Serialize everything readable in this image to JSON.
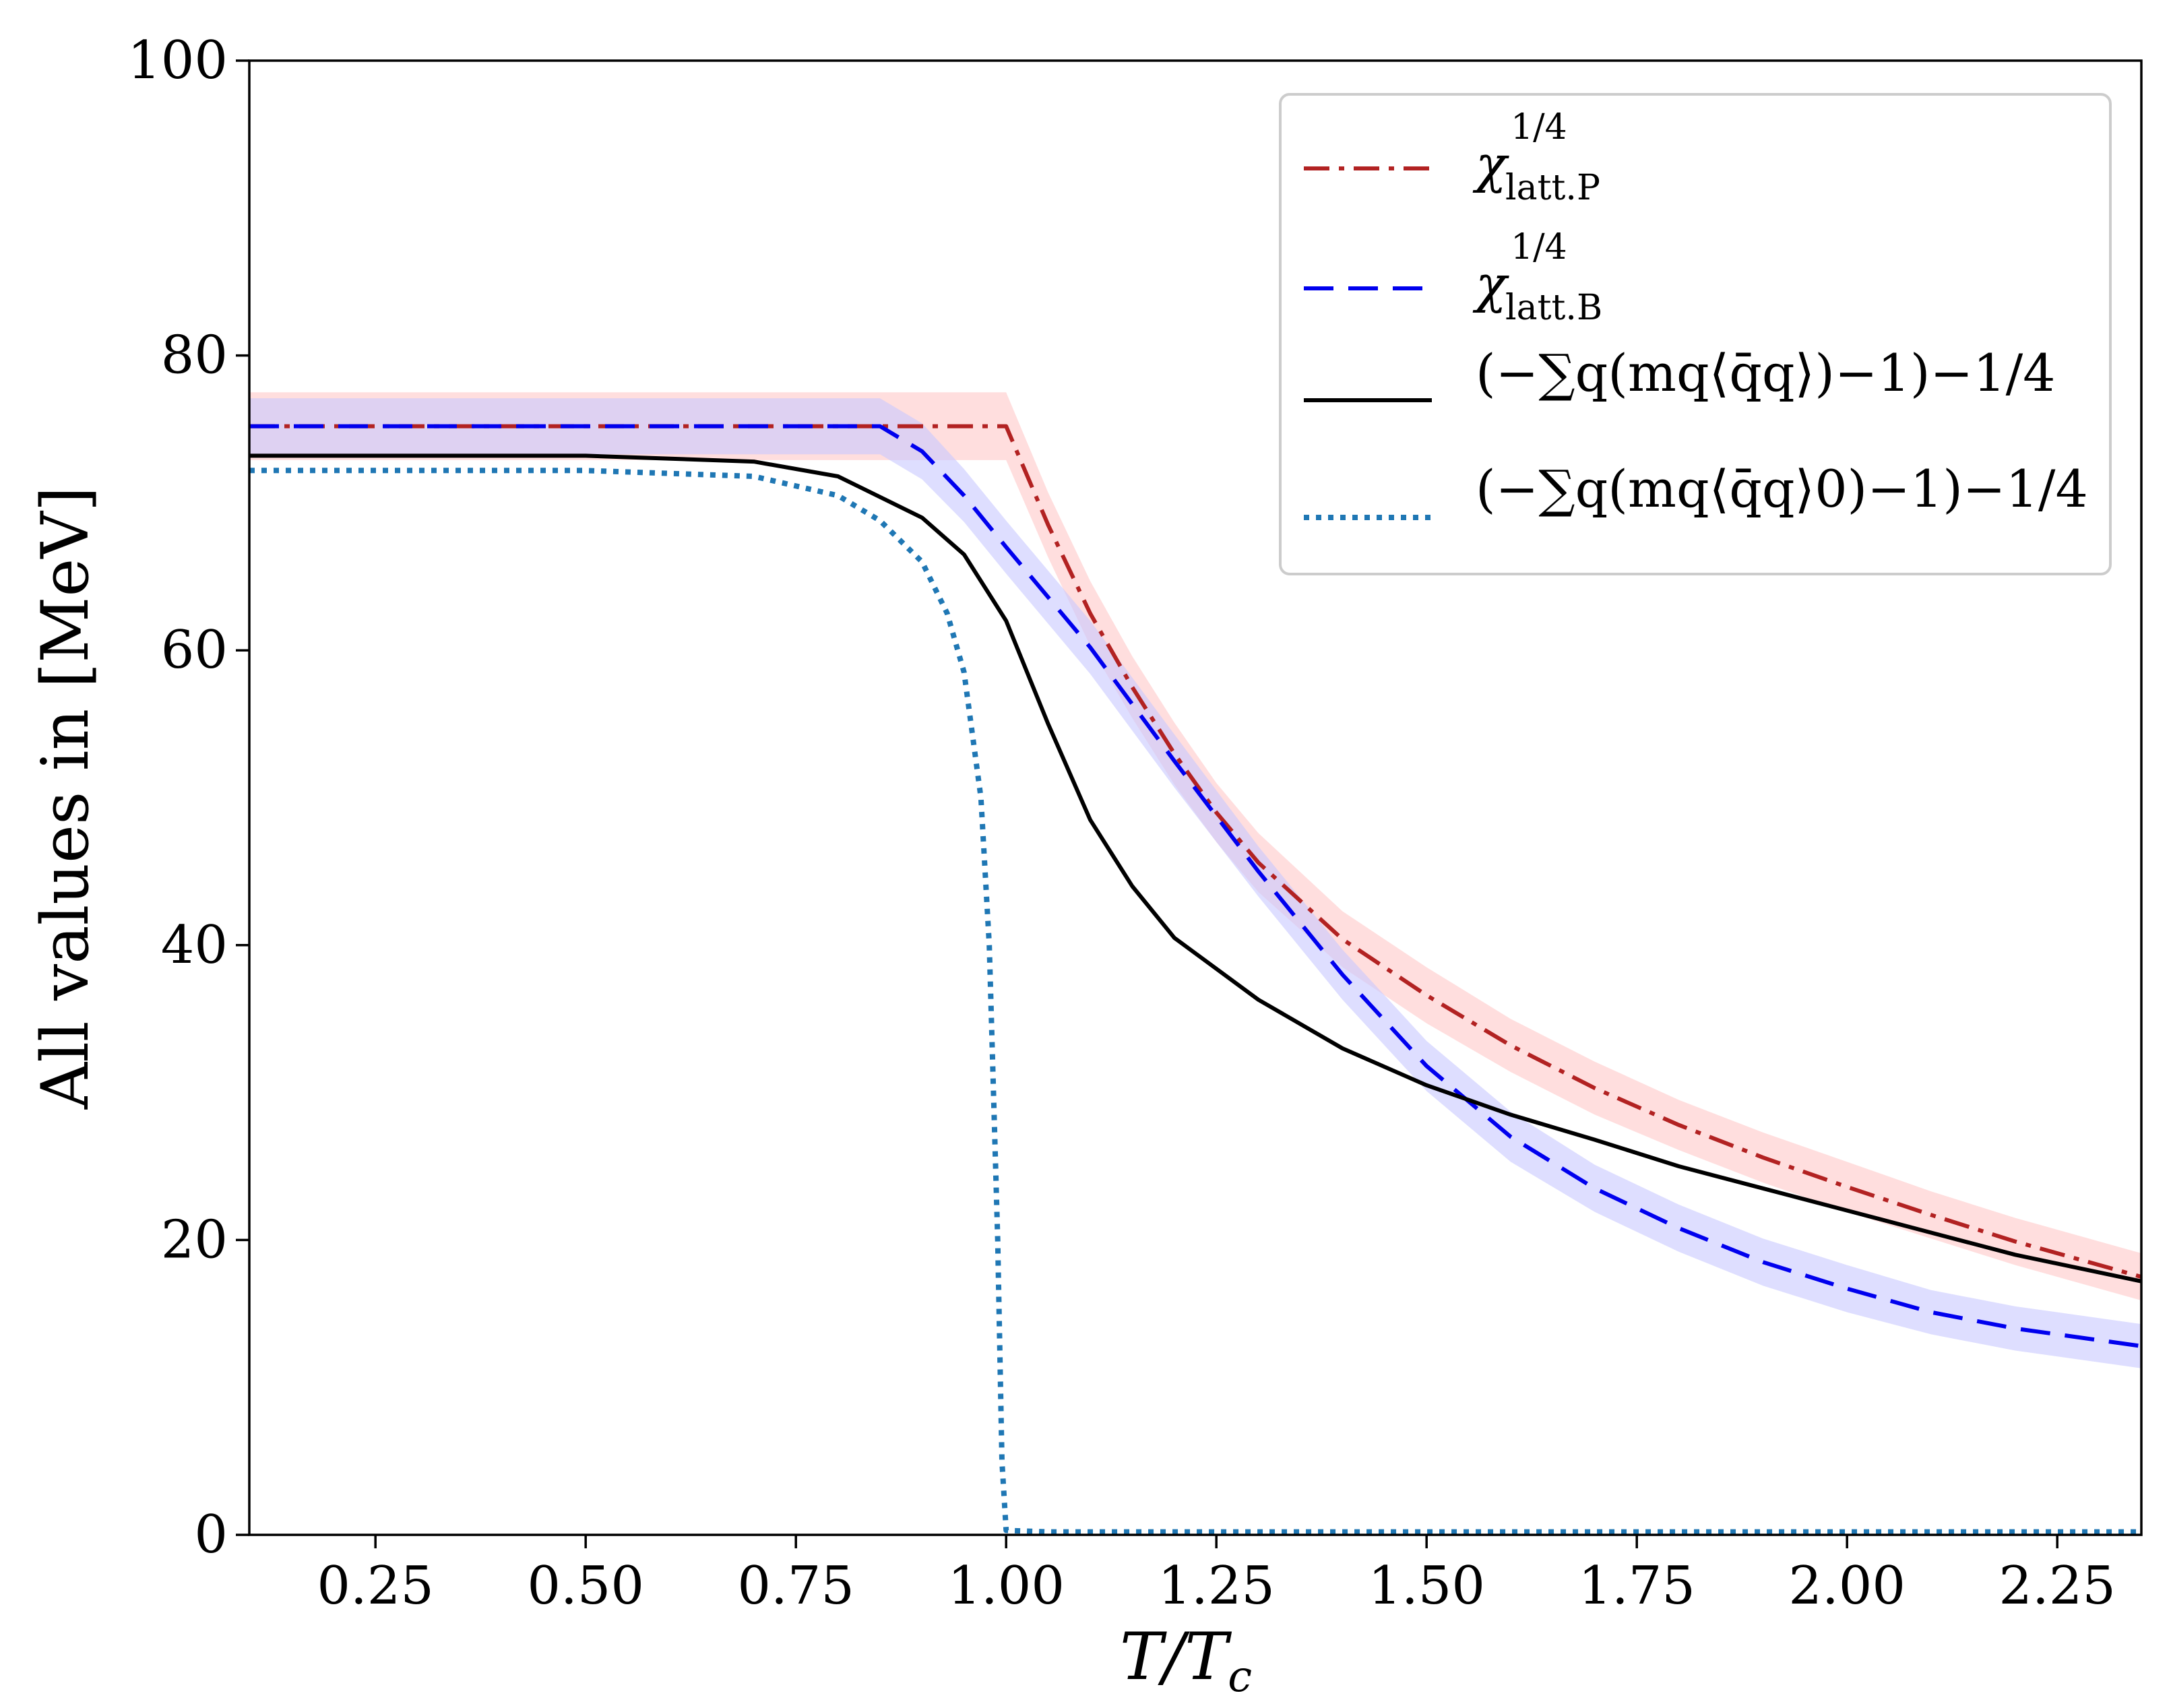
{
  "chart_data": {
    "type": "line",
    "title": "",
    "xlabel": "T/T_c",
    "xlabel_display": "T/T",
    "xlabel_sub": "c",
    "ylabel": "All values in [MeV]",
    "xlim": [
      0.1,
      2.35
    ],
    "ylim": [
      0,
      100
    ],
    "grid": false,
    "legend_position": "top-right",
    "x_ticks": [
      0.25,
      0.5,
      0.75,
      1.0,
      1.25,
      1.5,
      1.75,
      2.0,
      2.25
    ],
    "x_tick_labels": [
      "0.25",
      "0.50",
      "0.75",
      "1.00",
      "1.25",
      "1.50",
      "1.75",
      "2.00",
      "2.25"
    ],
    "y_ticks": [
      0,
      20,
      40,
      60,
      80,
      100
    ],
    "y_tick_labels": [
      "0",
      "20",
      "40",
      "60",
      "80",
      "100"
    ],
    "series": [
      {
        "name": "χ_latt.P^(1/4)",
        "label_main": "χ",
        "label_sup": "1/4",
        "label_sub": "latt.P",
        "color": "#b22222",
        "band_color": "#ffc8c8",
        "style": "dashdot",
        "x": [
          0.1,
          0.5,
          0.9,
          1.0,
          1.05,
          1.1,
          1.15,
          1.2,
          1.25,
          1.3,
          1.4,
          1.5,
          1.6,
          1.7,
          1.8,
          1.9,
          2.0,
          2.1,
          2.2,
          2.35
        ],
        "values": [
          75.2,
          75.2,
          75.2,
          75.2,
          68.5,
          62.5,
          57.5,
          53.0,
          49.0,
          45.6,
          40.4,
          36.6,
          33.2,
          30.3,
          27.8,
          25.6,
          23.6,
          21.7,
          19.9,
          17.5
        ],
        "band_halfwidth": [
          2.3,
          2.3,
          2.3,
          2.3,
          2.2,
          2.2,
          2.1,
          2.1,
          2.0,
          2.0,
          1.9,
          1.9,
          1.8,
          1.8,
          1.7,
          1.7,
          1.7,
          1.6,
          1.6,
          1.6
        ]
      },
      {
        "name": "χ_latt.B^(1/4)",
        "label_main": "χ",
        "label_sup": "1/4",
        "label_sub": "latt.B",
        "color": "#0000ee",
        "band_color": "#c8c8ff",
        "style": "dashed",
        "x": [
          0.1,
          0.5,
          0.8,
          0.85,
          0.9,
          0.95,
          1.0,
          1.1,
          1.2,
          1.3,
          1.4,
          1.5,
          1.6,
          1.7,
          1.8,
          1.9,
          2.0,
          2.1,
          2.2,
          2.35
        ],
        "values": [
          75.2,
          75.2,
          75.2,
          75.2,
          73.5,
          70.5,
          67.0,
          60.2,
          52.5,
          45.0,
          38.0,
          31.8,
          27.0,
          23.5,
          20.8,
          18.5,
          16.7,
          15.1,
          14.0,
          12.8
        ],
        "band_halfwidth": [
          1.9,
          1.9,
          1.9,
          1.9,
          1.9,
          1.8,
          1.8,
          1.8,
          1.8,
          1.7,
          1.7,
          1.7,
          1.7,
          1.6,
          1.6,
          1.6,
          1.6,
          1.5,
          1.5,
          1.5
        ]
      },
      {
        "name": "(−Σ_q (m_q ⟨q̄q⟩)^−1)^−1/4",
        "label_text": "(−∑q(mq⟨q̄q⟩)−1)−1/4",
        "color": "#000000",
        "style": "solid",
        "x": [
          0.1,
          0.5,
          0.7,
          0.8,
          0.9,
          0.95,
          1.0,
          1.05,
          1.1,
          1.15,
          1.2,
          1.3,
          1.4,
          1.5,
          1.6,
          1.7,
          1.8,
          1.9,
          2.0,
          2.1,
          2.2,
          2.35
        ],
        "values": [
          73.2,
          73.2,
          72.8,
          71.8,
          69.0,
          66.5,
          62.0,
          55.0,
          48.5,
          44.0,
          40.5,
          36.3,
          33.0,
          30.5,
          28.5,
          26.8,
          25.0,
          23.5,
          22.0,
          20.5,
          19.0,
          17.2
        ]
      },
      {
        "name": "(−Σ_q (m_q ⟨q̄q⟩_0)^−1)^−1/4",
        "label_text": "(−∑q(mq⟨q̄q⟩0)−1)−1/4",
        "color": "#1f77b4",
        "style": "dotted",
        "x": [
          0.1,
          0.5,
          0.7,
          0.8,
          0.85,
          0.9,
          0.93,
          0.95,
          0.97,
          0.98,
          0.99,
          0.995,
          1.0,
          1.05,
          1.5,
          2.0,
          2.35
        ],
        "values": [
          72.2,
          72.2,
          71.8,
          70.5,
          68.8,
          66.0,
          62.5,
          58.5,
          50.0,
          40.0,
          20.0,
          5.0,
          0.3,
          0.2,
          0.2,
          0.2,
          0.2
        ]
      }
    ]
  }
}
